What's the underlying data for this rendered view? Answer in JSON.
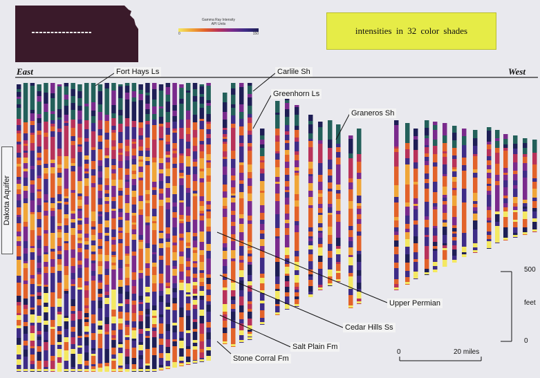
{
  "legend": {
    "title_line1": "Gamma Ray Intensity",
    "title_line2": "API Units",
    "min_label": "0",
    "max_label": "150"
  },
  "note": "intensities in 32 color shades",
  "directions": {
    "east": "East",
    "west": "West"
  },
  "side_label": "Dakota Aquifer",
  "formations": {
    "fort_hays": "Fort Hays Ls",
    "carlile": "Carlile Sh",
    "greenhorn": "Greenhorn Ls",
    "graneros": "Graneros Sh",
    "upper_permian": "Upper Permian",
    "cedar_hills": "Cedar Hills Ss",
    "salt_plain": "Salt Plain Fm",
    "stone_corral": "Stone Corral Fm"
  },
  "depth_scale": {
    "top": "500",
    "unit": "feet",
    "bottom": "0"
  },
  "distance_scale": {
    "start": "0",
    "end": "20 miles"
  },
  "colors": {
    "map_fill": "#3a1a2a",
    "note_bg": "#e6ec47",
    "palette": [
      "#f4e862",
      "#f0a638",
      "#e2622a",
      "#b8325a",
      "#7a2a8c",
      "#3e2c86",
      "#1e1e55",
      "#23605a"
    ]
  }
}
